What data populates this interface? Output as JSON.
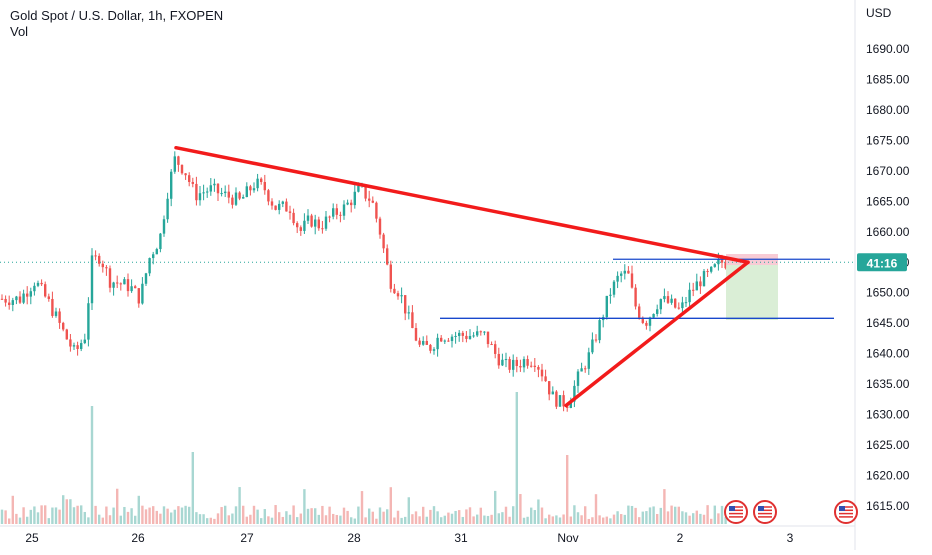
{
  "header": {
    "symbol_title": "Gold Spot / U.S. Dollar, 1h, FXOPEN",
    "volume_label": "Vol",
    "currency": "USD"
  },
  "price_tag": {
    "value": "41:16",
    "color": "#26a69a"
  },
  "colors": {
    "up": "#26a69a",
    "down": "#ef5350",
    "trendline": "#f21b1b",
    "level_line": "#1848cc",
    "last_price_line": "#26a69a",
    "stop_zone": "#f7c5d0",
    "target_zone": "#d6ecd2"
  },
  "chart_data": {
    "type": "candlestick",
    "title": "Gold Spot / U.S. Dollar, 1h, FXOPEN",
    "ylabel": "USD",
    "y_ticks": [
      "1690.00",
      "1685.00",
      "1680.00",
      "1675.00",
      "1670.00",
      "1665.00",
      "1660.00",
      "1655.00",
      "1650.00",
      "1645.00",
      "1640.00",
      "1635.00",
      "1630.00",
      "1625.00",
      "1620.00",
      "1615.00"
    ],
    "x_ticks": [
      "25",
      "26",
      "27",
      "28",
      "31",
      "Nov",
      "2",
      "3"
    ],
    "ylim": [
      1612,
      1694
    ],
    "last_price": 1655.0,
    "overlays": {
      "descending_trendline": [
        [
          "26 00:00",
          1673.8
        ],
        [
          "2 Nov 15:00",
          1655.0
        ]
      ],
      "ascending_trendline": [
        [
          "Nov 00:00",
          1631.5
        ],
        [
          "2 Nov 15:00",
          1655.0
        ]
      ],
      "horizontal_level_upper": 1655.5,
      "horizontal_level_lower": 1645.8
    },
    "volume_spikes": [
      "26 Oct",
      "27 Oct",
      "31 Oct",
      "31 Oct",
      "Nov"
    ]
  }
}
